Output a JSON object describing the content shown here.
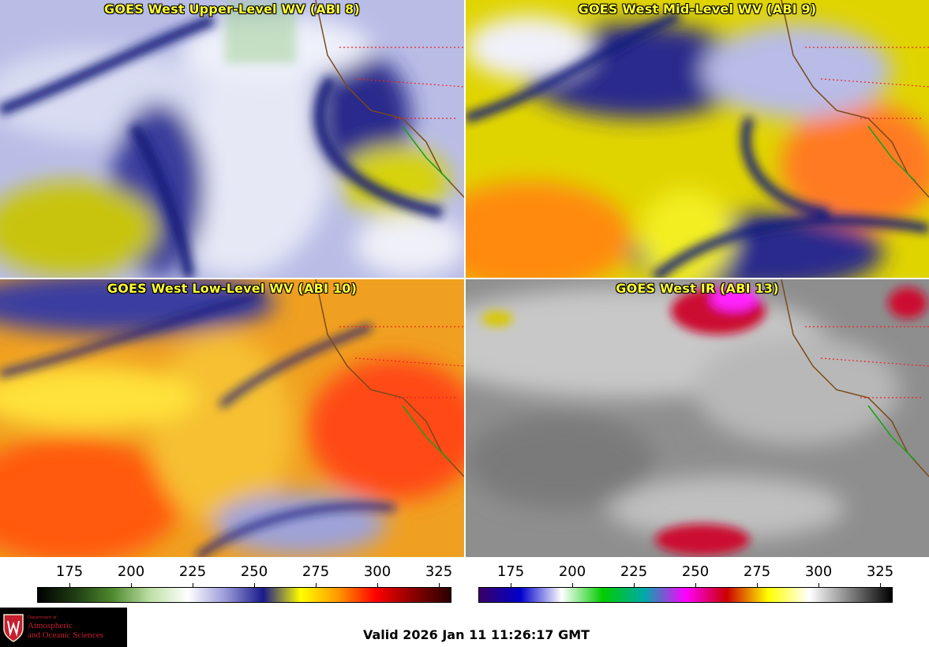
{
  "panels": [
    {
      "title": "GOES West Upper-Level WV (ABI 8)",
      "scheme": "wv-upper"
    },
    {
      "title": "GOES West Mid-Level WV (ABI 9)",
      "scheme": "wv-mid"
    },
    {
      "title": "GOES West Low-Level WV (ABI 10)",
      "scheme": "wv-low"
    },
    {
      "title": "GOES West IR (ABI 13)",
      "scheme": "ir"
    }
  ],
  "colorbars": [
    {
      "name": "water-vapor-scale",
      "ticks": [
        "175",
        "200",
        "225",
        "250",
        "275",
        "300",
        "325"
      ],
      "colors": [
        "#000000",
        "#1f3d14",
        "#4f8a2e",
        "#bfe0a6",
        "#ffffff",
        "#9a9ad8",
        "#1a1a8c",
        "#ffff00",
        "#ff9900",
        "#ff0000",
        "#8b0000",
        "#2a0000"
      ]
    },
    {
      "name": "infrared-scale",
      "ticks": [
        "175",
        "200",
        "225",
        "250",
        "275",
        "300",
        "325"
      ],
      "colors": [
        "#3a0066",
        "#0000cc",
        "#ffffff",
        "#00cc00",
        "#00aaaa",
        "#ff00ff",
        "#cc0000",
        "#ffff00",
        "#ffffff",
        "#808080",
        "#000000"
      ]
    }
  ],
  "logo": {
    "department": "Department of",
    "line1": "Atmospheric",
    "line2": "and Oceanic Sciences"
  },
  "valid_time": "Valid 2026 Jan 11 11:26:17 GMT"
}
